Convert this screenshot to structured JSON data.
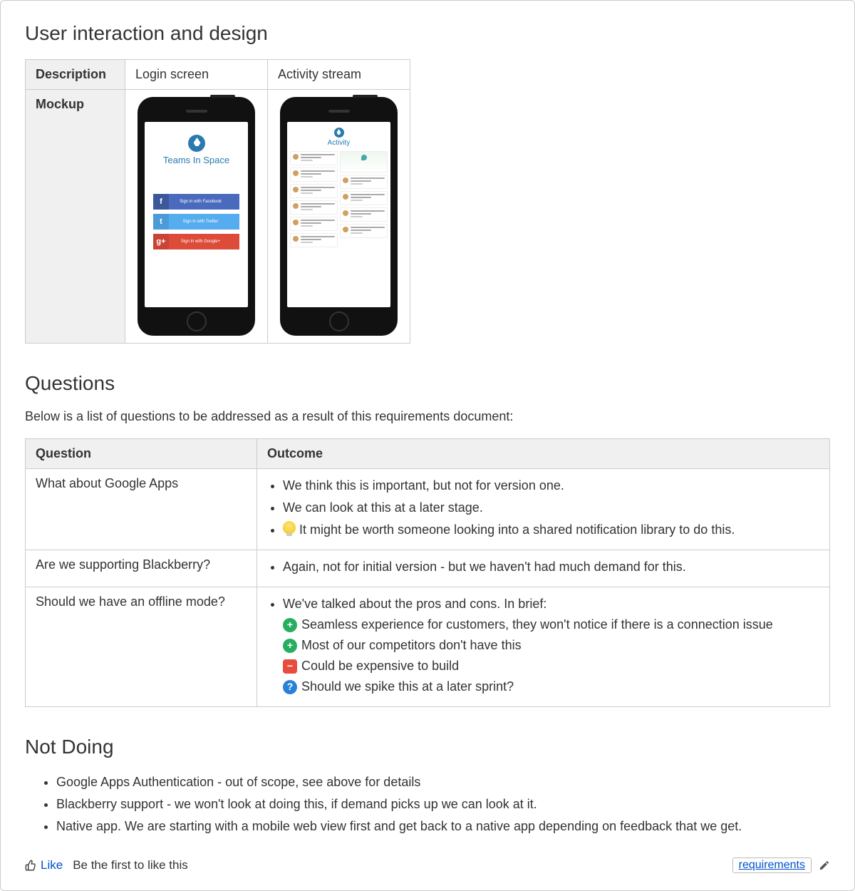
{
  "colors": {
    "border": "#cccccc",
    "header_bg": "#f0f0f0",
    "link": "#0052cc",
    "text": "#333333",
    "plus_bg": "#27ae60",
    "minus_bg": "#e74c3c",
    "question_bg": "#2980d9",
    "bulb": "#f1c40f",
    "fb": "#3b5998",
    "tw": "#55acee",
    "gp": "#dd4b39",
    "brand": "#2a7ab0"
  },
  "section1": {
    "heading": "User interaction and design",
    "row_labels": {
      "desc": "Description",
      "mockup": "Mockup"
    },
    "columns": [
      {
        "desc": "Login screen"
      },
      {
        "desc": "Activity stream"
      }
    ],
    "login_mock": {
      "title": "Teams In Space",
      "buttons": [
        {
          "class": "fb",
          "icon": "f",
          "label": "Sign in with Facebook"
        },
        {
          "class": "tw",
          "icon": "t",
          "label": "Sign in with Twitter"
        },
        {
          "class": "gp",
          "icon": "g+",
          "label": "Sign in with Google+"
        }
      ]
    },
    "activity_mock": {
      "title": "Activity"
    }
  },
  "section2": {
    "heading": "Questions",
    "intro": "Below is a list of questions to be addressed as a result of this requirements document:",
    "columns": {
      "q": "Question",
      "o": "Outcome"
    },
    "rows": [
      {
        "q": "What about Google Apps",
        "o": [
          {
            "type": "plain",
            "text": "We think this is important, but not for version one."
          },
          {
            "type": "plain",
            "text": "We can look at this at a later stage."
          },
          {
            "type": "bulb",
            "text": "It might be worth someone looking into a shared notification library to do this."
          }
        ]
      },
      {
        "q": "Are we supporting Blackberry?",
        "o": [
          {
            "type": "plain",
            "text": "Again, not for initial version - but we haven't had much demand for this."
          }
        ]
      },
      {
        "q": "Should we have an offline mode?",
        "o_lead": "We've talked about the pros and cons. In brief:",
        "o_sub": [
          {
            "type": "plus",
            "text": "Seamless experience for customers, they won't notice if there is a connection issue"
          },
          {
            "type": "plus",
            "text": "Most of our competitors don't have this"
          },
          {
            "type": "minus",
            "text": "Could be expensive to build"
          },
          {
            "type": "q",
            "text": "Should we spike this at a later sprint?"
          }
        ]
      }
    ]
  },
  "section3": {
    "heading": "Not Doing",
    "items": [
      "Google Apps Authentication - out of scope, see above for details",
      "Blackberry support - we won't look at doing this, if demand picks up we can look at it.",
      "Native app. We are starting with a mobile web view first and get back to a native app depending on feedback that we get."
    ]
  },
  "footer": {
    "like": "Like",
    "first": "Be the first to like this",
    "tag": "requirements"
  }
}
